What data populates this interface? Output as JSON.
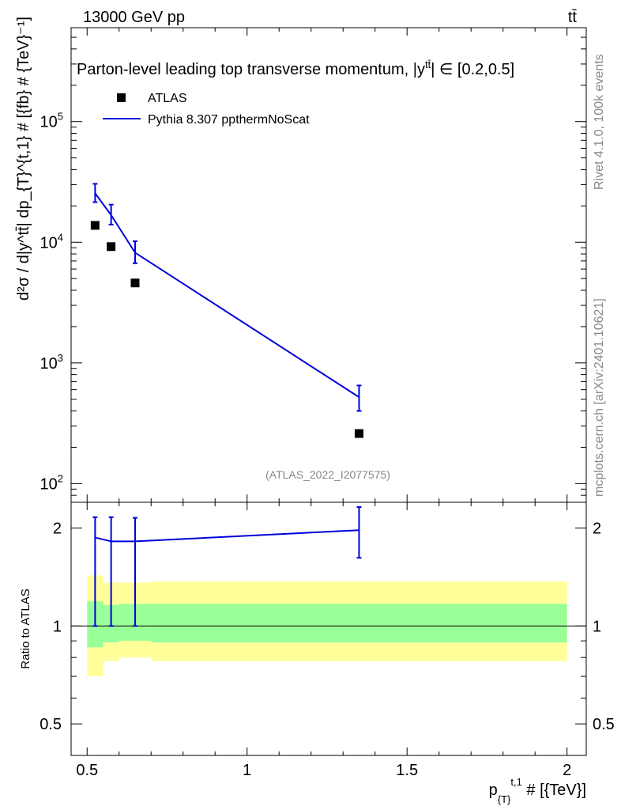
{
  "header": {
    "left": "13000 GeV pp",
    "right": "tt̄"
  },
  "side_labels": {
    "rivet": "Rivet 4.1.0,  100k events",
    "mcplots": "mcplots.cern.ch [arXiv:2401.10621]"
  },
  "chart_data": {
    "type": "line",
    "title": "Parton-level leading top transverse momentum, |y",
    "title_sup": "tt̄",
    "title_tail": "| ∈ [0.2,0.5]",
    "watermark": "(ATLAS_2022_I2077575)",
    "xlabel": "p",
    "xlabel_sub": "{T}",
    "xlabel_sup": "t,1",
    "xlabel_tail": " # [{TeV}]",
    "ylabel": "d²σ / d|y^tt̄| dp_{T}^{t,1} # [{fb} # {TeV}⁻¹]",
    "ratio_ylabel": "Ratio to ATLAS",
    "xlim": [
      0.45,
      2.06
    ],
    "ylim": [
      70,
      600000
    ],
    "ratio_ylim": [
      0.4,
      2.4
    ],
    "x_ticks": [
      {
        "value": 0.5,
        "label": "0.5"
      },
      {
        "value": 1.0,
        "label": "1"
      },
      {
        "value": 1.5,
        "label": "1.5"
      },
      {
        "value": 2.0,
        "label": "2"
      }
    ],
    "y_ticks": [
      {
        "value": 100,
        "base": "10",
        "exp": "2"
      },
      {
        "value": 1000,
        "base": "10",
        "exp": "3"
      },
      {
        "value": 10000,
        "base": "10",
        "exp": "4"
      },
      {
        "value": 100000,
        "base": "10",
        "exp": "5"
      }
    ],
    "ratio_ticks": [
      {
        "value": 0.5,
        "label": "0.5"
      },
      {
        "value": 1.0,
        "label": "1"
      },
      {
        "value": 2.0,
        "label": "2"
      }
    ],
    "legend": [
      {
        "name": "ATLAS",
        "kind": "marker"
      },
      {
        "name": "Pythia 8.307 ppthermNoScat",
        "kind": "line"
      }
    ],
    "series": [
      {
        "name": "ATLAS",
        "color": "#000000",
        "x": [
          0.525,
          0.575,
          0.65,
          1.35
        ],
        "y": [
          13800,
          9200,
          4600,
          260
        ]
      },
      {
        "name": "Pythia 8.307 ppthermNoScat",
        "color": "#0000dd",
        "x": [
          0.525,
          0.575,
          0.65,
          1.35
        ],
        "y": [
          25500,
          16800,
          8200,
          520
        ],
        "yerr_low": [
          21500,
          14000,
          6700,
          400
        ],
        "yerr_high": [
          30500,
          20500,
          10200,
          650
        ]
      }
    ],
    "ratio": {
      "x": [
        0.525,
        0.575,
        0.65,
        1.35
      ],
      "values": [
        1.87,
        1.82,
        1.82,
        1.97
      ],
      "err_low": [
        1.0,
        1.0,
        1.0,
        1.62
      ],
      "err_high": [
        2.16,
        2.16,
        2.15,
        2.32
      ],
      "bands": [
        {
          "x0": 0.5,
          "x1": 0.55,
          "yellow": [
            0.7,
            1.43
          ],
          "green": [
            0.86,
            1.19
          ]
        },
        {
          "x0": 0.55,
          "x1": 0.6,
          "yellow": [
            0.78,
            1.36
          ],
          "green": [
            0.89,
            1.16
          ]
        },
        {
          "x0": 0.6,
          "x1": 0.7,
          "yellow": [
            0.8,
            1.36
          ],
          "green": [
            0.9,
            1.17
          ]
        },
        {
          "x0": 0.7,
          "x1": 2.0,
          "yellow": [
            0.78,
            1.37
          ],
          "green": [
            0.89,
            1.17
          ]
        }
      ]
    }
  }
}
